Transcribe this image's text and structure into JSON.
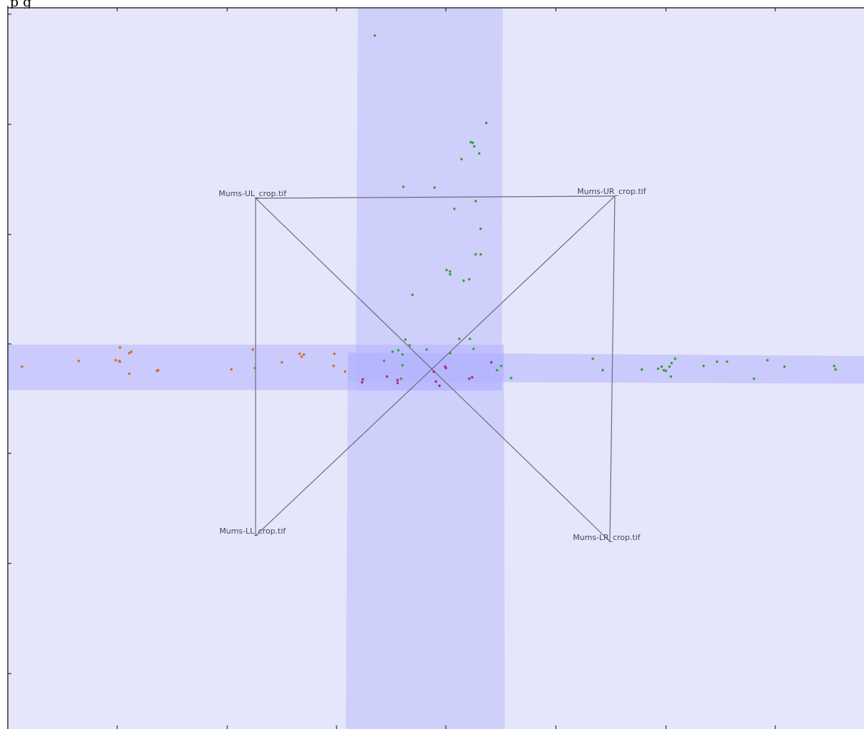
{
  "title": "p        g",
  "colors": {
    "canvas": "#e6e6fa",
    "band": "#b3b3ff",
    "band_overlap": "#9b9bff",
    "outline": "#6a6a78",
    "axis": "#000000",
    "point_green": "#2ca02c",
    "point_orange": "#d2691e",
    "point_purple": "#9b2d6f"
  },
  "images": [
    {
      "name": "UL",
      "label": "Mums-UL_crop.tif"
    },
    {
      "name": "UR",
      "label": "Mums-UR_crop.tif"
    },
    {
      "name": "LL",
      "label": "Mums-LL_crop.tif"
    },
    {
      "name": "LR",
      "label": "Mums-LR_crop.tif"
    }
  ]
}
